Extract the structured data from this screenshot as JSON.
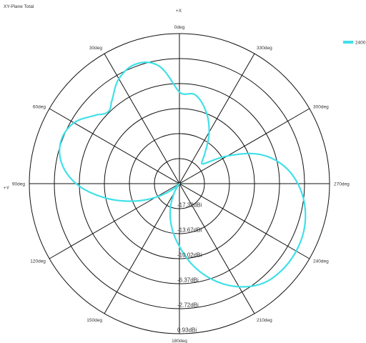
{
  "chart_data": {
    "type": "polar-line",
    "title": "XY-Plane Total",
    "axis_labels": {
      "top": "+X",
      "left": "+Y"
    },
    "legend": {
      "placement": "top-right",
      "entries": [
        {
          "label": "2400",
          "color": "#40e0e8"
        }
      ]
    },
    "angle_direction": "counterclockwise",
    "angle_zero": "top",
    "angle_ticks": [
      "0deg",
      "30deg",
      "60deg",
      "90deg",
      "120deg",
      "150deg",
      "180deg",
      "210deg",
      "240deg",
      "270deg",
      "300deg",
      "330deg"
    ],
    "radial_ticks": [
      "-17.32dBi",
      "-13.67dBi",
      "-10.02dBi",
      "-6.37dBi",
      "-2.72dBi",
      "0.93dBi"
    ],
    "r_range_dbi": [
      -20.97,
      0.93
    ],
    "grid": true,
    "series": [
      {
        "name": "2400",
        "color": "#40e0e8",
        "angles_deg": [
          0,
          10,
          20,
          30,
          40,
          45,
          50,
          60,
          70,
          80,
          90,
          100,
          110,
          120,
          130,
          135,
          140,
          150,
          160,
          170,
          180,
          190,
          200,
          210,
          220,
          230,
          240,
          250,
          260,
          270,
          280,
          290,
          300,
          310,
          320,
          330,
          340,
          350,
          360
        ],
        "gain_dbi": [
          -7.6,
          -3.5,
          -2.4,
          -3.3,
          -5.5,
          -6.2,
          -5.3,
          -3.2,
          -2.6,
          -3.5,
          -5.9,
          -9.6,
          -13.5,
          -17.0,
          -19.7,
          -20.9,
          -20.7,
          -19.5,
          -17.1,
          -14.5,
          -11.8,
          -8.7,
          -5.9,
          -3.6,
          -2.0,
          -1.4,
          -1.3,
          -1.6,
          -2.4,
          -3.7,
          -5.6,
          -8.5,
          -12.9,
          -16.5,
          -15.2,
          -12.3,
          -9.7,
          -7.8,
          -7.6
        ]
      }
    ]
  }
}
